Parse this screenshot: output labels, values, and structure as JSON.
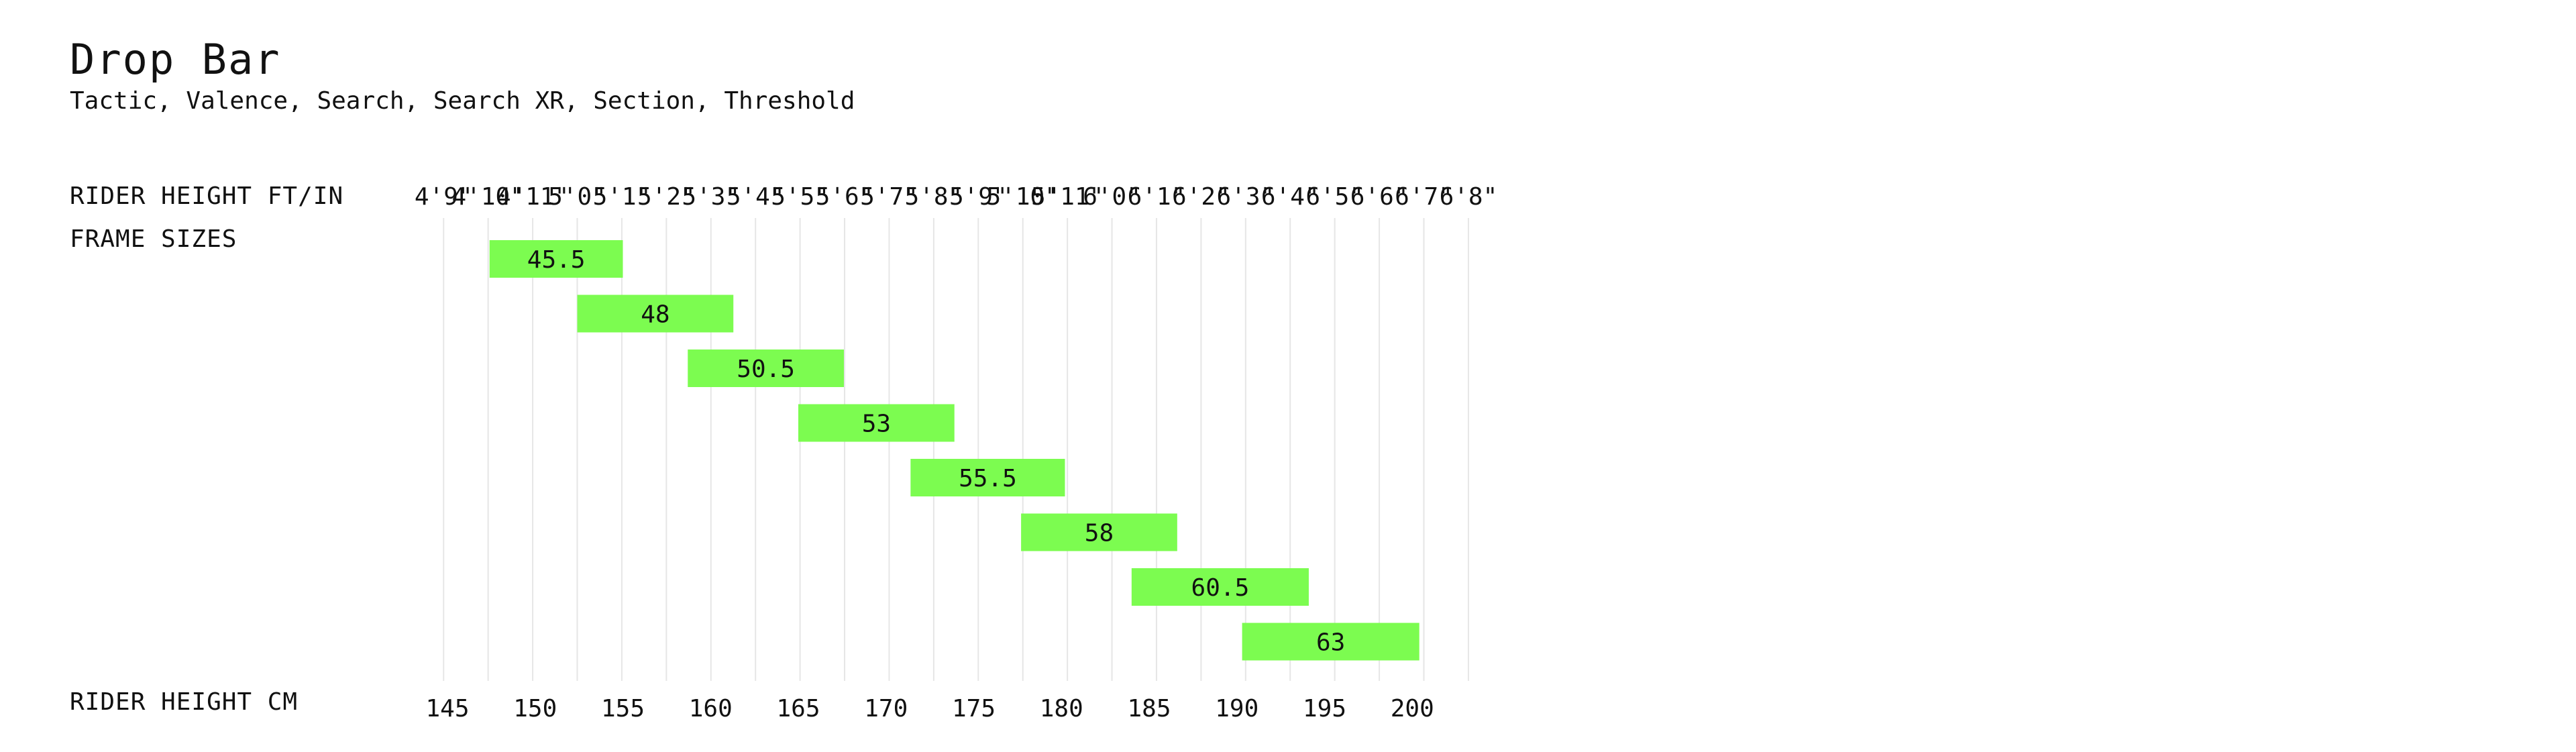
{
  "header": {
    "title": "Drop Bar",
    "subtitle": "Tactic, Valence, Search, Search XR, Section, Threshold"
  },
  "labels": {
    "top_axis": "RIDER HEIGHT FT/IN",
    "frames": "FRAME SIZES",
    "bottom_axis": "RIDER HEIGHT CM"
  },
  "colors": {
    "bar": "#7cfc50",
    "grid": "#e6e6e6",
    "text": "#111111"
  },
  "chart_data": {
    "type": "bar",
    "orientation": "horizontal-range",
    "unit": "cm",
    "x_range": [
      142.5,
      203.5
    ],
    "grid": true,
    "cm_ticks": [
      145,
      150,
      155,
      160,
      165,
      170,
      175,
      180,
      185,
      190,
      195,
      200
    ],
    "ftin_ticks": [
      "4'9\"",
      "4'10\"",
      "4'11\"",
      "5'0\"",
      "5'1\"",
      "5'2\"",
      "5'3\"",
      "5'4\"",
      "5'5\"",
      "5'6\"",
      "5'7\"",
      "5'8\"",
      "5'9\"",
      "5'10\"",
      "5'11\"",
      "6'0\"",
      "6'1\"",
      "6'2\"",
      "6'3\"",
      "6'4\"",
      "6'5\"",
      "6'6\"",
      "6'7\"",
      "6'8\""
    ],
    "bars": [
      {
        "label": "45.5",
        "start": 147.4,
        "end": 155.0
      },
      {
        "label": "48",
        "start": 152.4,
        "end": 161.3
      },
      {
        "label": "50.5",
        "start": 158.7,
        "end": 167.6
      },
      {
        "label": "53",
        "start": 165.0,
        "end": 173.9
      },
      {
        "label": "55.5",
        "start": 171.4,
        "end": 180.2
      },
      {
        "label": "58",
        "start": 177.7,
        "end": 186.6
      },
      {
        "label": "60.5",
        "start": 184.0,
        "end": 194.1
      },
      {
        "label": "63",
        "start": 190.3,
        "end": 200.4
      }
    ]
  }
}
